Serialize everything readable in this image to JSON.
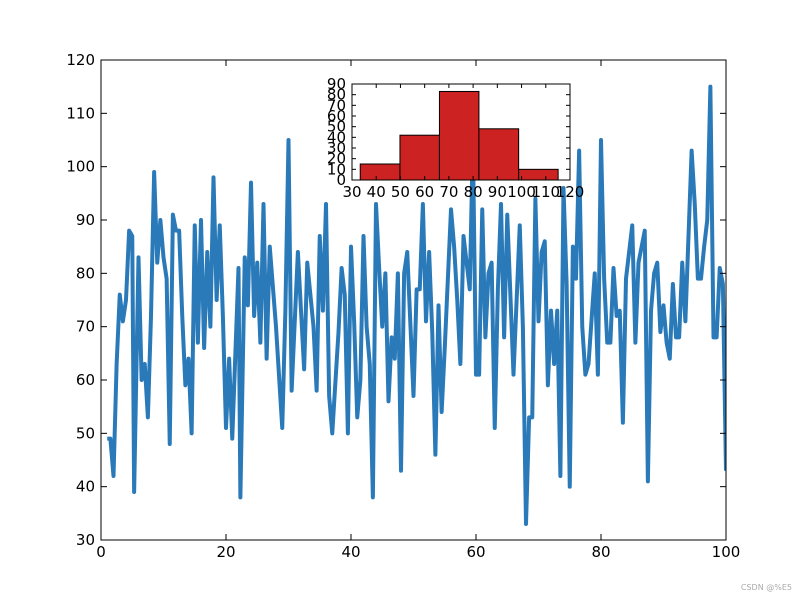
{
  "chart_data": [
    {
      "type": "line",
      "color": "#2a7ab9",
      "x": [
        1,
        1.5,
        2,
        2.5,
        3,
        3.5,
        4,
        4.5,
        5,
        5.3,
        6,
        6.5,
        7,
        7.5,
        8,
        8.5,
        9,
        9.5,
        10,
        10.5,
        11,
        11.5,
        12,
        12.5,
        13,
        13.5,
        14,
        14.5,
        15,
        15.5,
        16,
        16.5,
        17,
        17.5,
        18,
        18.5,
        19,
        19.5,
        20,
        20.5,
        21,
        22,
        22.3,
        23,
        23.5,
        24,
        24.5,
        25,
        25.5,
        26,
        26.5,
        27,
        28,
        29,
        29.5,
        30,
        30.5,
        31.5,
        32.5,
        33,
        34,
        34.5,
        35,
        35.5,
        36,
        36.5,
        37,
        38,
        38.5,
        39,
        39.5,
        40,
        40.5,
        41,
        41.5,
        42,
        42.5,
        43,
        43.5,
        44,
        44.5,
        45,
        45.5,
        46,
        46.5,
        47,
        47.5,
        48,
        48.5,
        49,
        50,
        50.5,
        51,
        51.5,
        52,
        52.5,
        53,
        53.5,
        54,
        54.5,
        55,
        56,
        56.5,
        57,
        57.5,
        58,
        58.5,
        59,
        59.5,
        60,
        60.5,
        61,
        61.5,
        62,
        62.5,
        63,
        63.5,
        64,
        64.5,
        65,
        65.5,
        66,
        67,
        67.5,
        68,
        68.5,
        69,
        69.5,
        70,
        70.5,
        71,
        71.5,
        72,
        72.5,
        73,
        73.5,
        74,
        74.5,
        75,
        75.5,
        76,
        76.5,
        77,
        77.5,
        78,
        79,
        79.5,
        80,
        80.5,
        81,
        81.5,
        82,
        82.5,
        83,
        83.5,
        84,
        85,
        85.5,
        86,
        87,
        87.5,
        88,
        88.5,
        89,
        89.5,
        90,
        90.5,
        91,
        91.5,
        92,
        92.5,
        93,
        93.5,
        94.5,
        95,
        95.5,
        96,
        96.5,
        97,
        97.5,
        98,
        98.5,
        99,
        99.5,
        100
      ],
      "values": [
        49,
        49,
        42,
        63,
        76,
        71,
        75,
        88,
        87,
        39,
        83,
        60,
        63,
        53,
        72,
        99,
        82,
        90,
        83,
        79,
        48,
        91,
        88,
        88,
        72,
        59,
        64,
        50,
        89,
        67,
        90,
        66,
        84,
        70,
        98,
        75,
        89,
        72,
        51,
        64,
        49,
        81,
        38,
        83,
        74,
        97,
        72,
        82,
        67,
        93,
        64,
        85,
        70,
        51,
        73,
        105,
        58,
        84,
        62,
        82,
        70,
        58,
        87,
        73,
        93,
        57,
        50,
        69,
        81,
        76,
        50,
        85,
        71,
        53,
        60,
        87,
        70,
        63,
        38,
        93,
        81,
        70,
        80,
        56,
        68,
        64,
        80,
        43,
        80,
        84,
        57,
        77,
        77,
        93,
        71,
        84,
        69,
        46,
        74,
        54,
        66,
        92,
        85,
        75,
        63,
        87,
        82,
        77,
        105,
        61,
        61,
        92,
        68,
        80,
        82,
        51,
        77,
        93,
        68,
        91,
        76,
        61,
        89,
        70,
        33,
        53,
        53,
        94,
        71,
        84,
        86,
        59,
        73,
        63,
        73,
        42,
        96,
        78,
        40,
        85,
        79,
        103,
        70,
        61,
        63,
        80,
        61,
        105,
        79,
        67,
        67,
        81,
        72,
        73,
        52,
        79,
        89,
        67,
        82,
        88,
        41,
        73,
        80,
        82,
        69,
        74,
        67,
        64,
        78,
        68,
        68,
        82,
        71,
        103,
        93,
        79,
        79,
        85,
        90,
        115,
        68,
        68,
        81,
        78,
        43
      ],
      "xlim": [
        0,
        100
      ],
      "ylim": [
        30,
        120
      ],
      "xticks": [
        0,
        20,
        40,
        60,
        80,
        100
      ],
      "yticks": [
        30,
        40,
        50,
        60,
        70,
        80,
        90,
        100,
        110,
        120
      ]
    },
    {
      "type": "histogram",
      "color": "#cc2222",
      "bins": [
        33.4,
        49.8,
        66.1,
        82.4,
        98.8,
        115.1
      ],
      "values": [
        15,
        42,
        83,
        48,
        10
      ],
      "xlim": [
        30,
        120
      ],
      "ylim": [
        0,
        90
      ],
      "xticks": [
        30,
        40,
        50,
        60,
        70,
        80,
        90,
        100,
        110,
        120
      ],
      "yticks": [
        0,
        10,
        20,
        30,
        40,
        50,
        60,
        70,
        80,
        90
      ]
    }
  ],
  "watermark": "CSDN @%E5"
}
